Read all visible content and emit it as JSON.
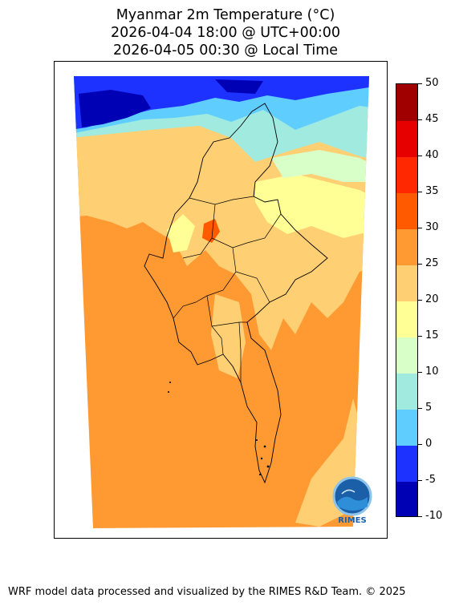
{
  "title": {
    "line1": "Myanmar 2m Temperature (°C)",
    "line2": "2026-04-04 18:00 @ UTC+00:00",
    "line3": "2026-04-05 00:30 @ Local Time"
  },
  "colorbar": {
    "ticks": [
      "50",
      "45",
      "40",
      "35",
      "30",
      "25",
      "20",
      "15",
      "10",
      "5",
      "0",
      "-5",
      "-10"
    ],
    "levels": [
      {
        "from": -10,
        "to": -5,
        "color": "#0000b4"
      },
      {
        "from": -5,
        "to": 0,
        "color": "#1e32ff"
      },
      {
        "from": 0,
        "to": 5,
        "color": "#60cdff"
      },
      {
        "from": 5,
        "to": 10,
        "color": "#a0eae0"
      },
      {
        "from": 10,
        "to": 15,
        "color": "#d8ffc8"
      },
      {
        "from": 15,
        "to": 20,
        "color": "#ffff96"
      },
      {
        "from": 20,
        "to": 25,
        "color": "#ffcf73"
      },
      {
        "from": 25,
        "to": 30,
        "color": "#ff9a33"
      },
      {
        "from": 30,
        "to": 35,
        "color": "#ff5a00"
      },
      {
        "from": 35,
        "to": 40,
        "color": "#ff2800"
      },
      {
        "from": 40,
        "to": 45,
        "color": "#e60000"
      },
      {
        "from": 45,
        "to": 50,
        "color": "#a00000"
      }
    ]
  },
  "logo": {
    "text": "RIMES"
  },
  "footer": "WRF model data processed and visualized by the RIMES R&D Team. © 2025"
}
